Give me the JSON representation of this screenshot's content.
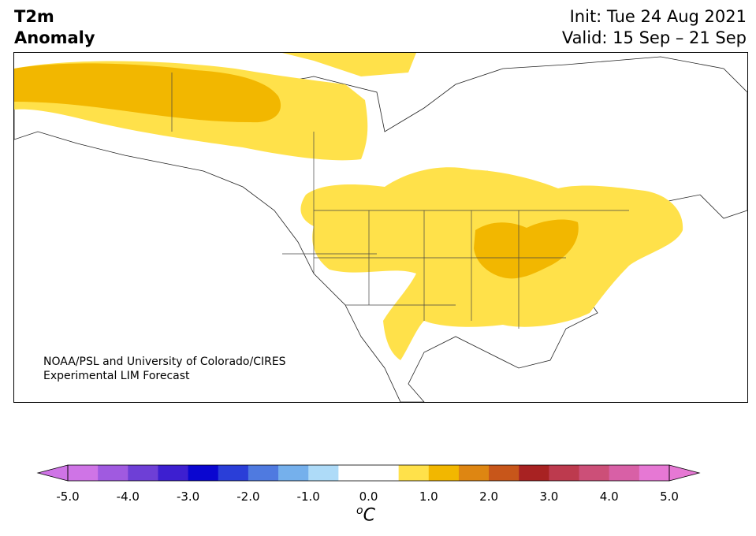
{
  "title": {
    "left_line1": "T2m",
    "left_line2": "Anomaly",
    "right_line1": "Init: Tue 24 Aug 2021",
    "right_line2": "Valid: 15 Sep – 21 Sep"
  },
  "credit": {
    "line1": "NOAA/PSL and University of Colorado/CIRES",
    "line2": "Experimental LIM Forecast"
  },
  "colorbar": {
    "ticks": [
      "-5.0",
      "-4.0",
      "-3.0",
      "-2.0",
      "-1.0",
      "0.0",
      "1.0",
      "2.0",
      "3.0",
      "4.0",
      "5.0"
    ],
    "unit_super": "o",
    "unit_main": "C",
    "colors": [
      "#cf74e6",
      "#a05ae0",
      "#6e3fd6",
      "#3d1fd0",
      "#0a06d0",
      "#2a3ed8",
      "#4f7ae0",
      "#75b0ec",
      "#aedbf8",
      "#ffffff",
      "#ffffff",
      "#ffe14a",
      "#f2b700",
      "#de8612",
      "#c8561a",
      "#a82222",
      "#bd3a4e",
      "#cc4f78",
      "#d860a6",
      "#e678d4"
    ],
    "extend_low": "#cf74e6",
    "extend_high": "#e678d4"
  },
  "map": {
    "region": "North America",
    "anomaly_colors": {
      "plus_0_5_to_1_0": "#ffe14a",
      "plus_1_0_to_1_5": "#f2b700"
    }
  }
}
